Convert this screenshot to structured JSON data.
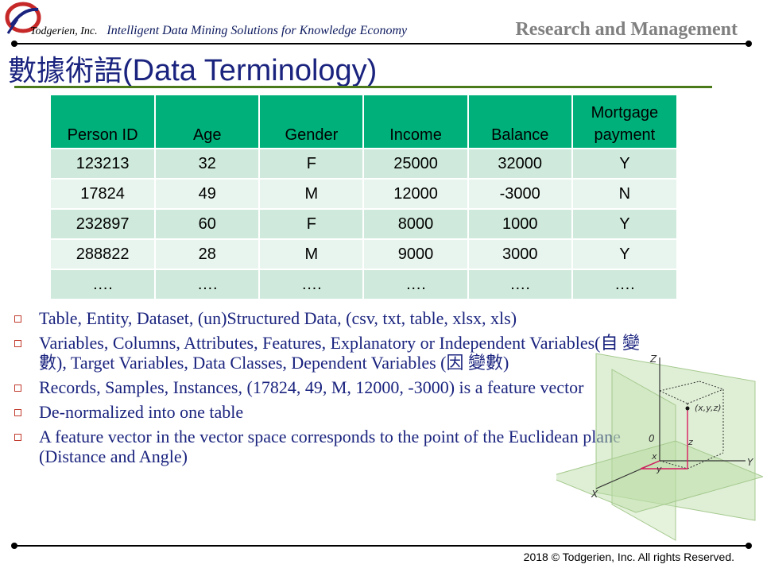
{
  "header": {
    "company": "Todgerien, Inc.",
    "tagline": "Intelligent Data Mining Solutions for Knowledge Economy",
    "section": "Research and Management",
    "logo_icon": "todgerien-logo"
  },
  "title": {
    "cjk": "數據術語",
    "latin": "(Data Terminology)"
  },
  "table": {
    "headers": [
      "Person ID",
      "Age",
      "Gender",
      "Income",
      "Balance",
      "Mortgage payment"
    ],
    "rows": [
      [
        "123213",
        "32",
        "F",
        "25000",
        "32000",
        "Y"
      ],
      [
        "17824",
        "49",
        "M",
        "12000",
        "-3000",
        "N"
      ],
      [
        "232897",
        "60",
        "F",
        "8000",
        "1000",
        "Y"
      ],
      [
        "288822",
        "28",
        "M",
        "9000",
        "3000",
        "Y"
      ],
      [
        "….",
        "….",
        "….",
        "….",
        "….",
        "…."
      ]
    ]
  },
  "bullets": [
    "Table, Entity, Dataset, (un)Structured Data, (csv, txt, table, xlsx, xls)",
    "Variables, Columns, Attributes, Features, Explanatory or Independent Variables(自 變數), Target Variables, Data Classes, Dependent Variables (因 變數)",
    "Records, Samples, Instances, (17824, 49, M, 12000, -3000) is a feature vector",
    "De-normalized into one table",
    "A feature vector in the vector space corresponds to the point of the Euclidean plane (Distance and Angle)"
  ],
  "diagram": {
    "labels": {
      "z_axis": "Z",
      "y_axis": "Y",
      "x_axis": "X",
      "origin": "0",
      "point": "(x,y,z)",
      "x": "x",
      "y": "y",
      "z": "z"
    }
  },
  "footer": "2018 © Todgerien, Inc. All rights Reserved.",
  "colors": {
    "title": "#1a237e",
    "table_header": "#00b07a",
    "row_odd": "#cfeadc",
    "row_even": "#e8f5ee",
    "bullet_mark": "#c0392b",
    "title_rule": "#4a7a1a"
  }
}
